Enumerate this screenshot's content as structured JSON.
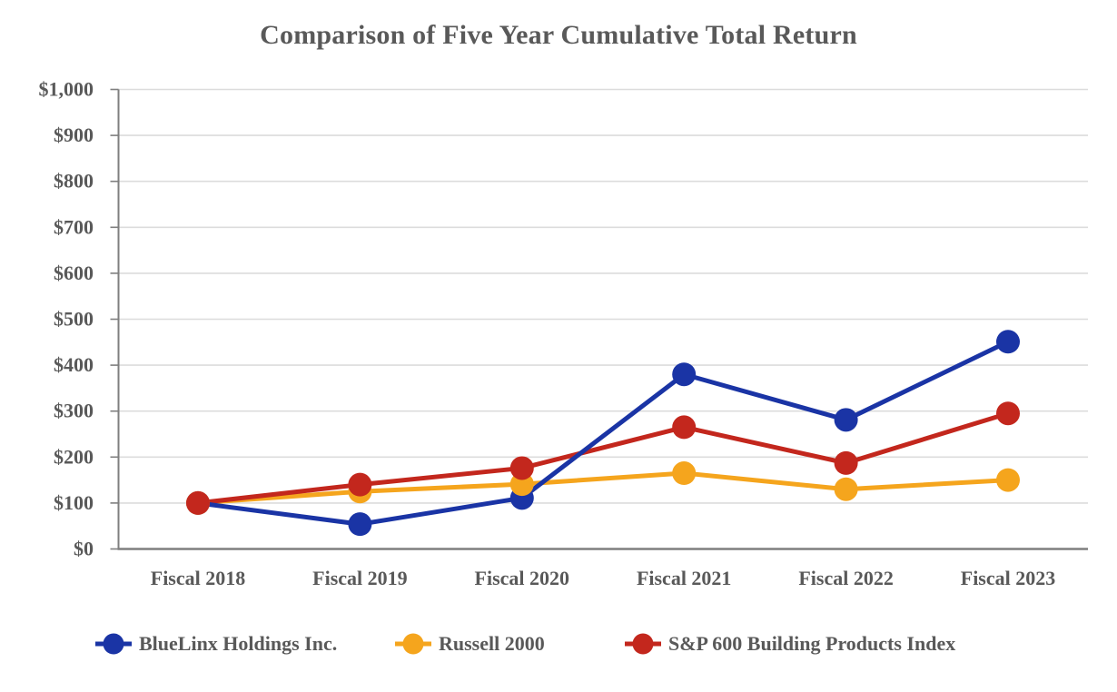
{
  "chart_data": {
    "type": "line",
    "title": "Comparison of Five Year Cumulative Total Return",
    "categories": [
      "Fiscal 2018",
      "Fiscal 2019",
      "Fiscal 2020",
      "Fiscal 2021",
      "Fiscal 2022",
      "Fiscal 2023"
    ],
    "series": [
      {
        "name": "BlueLinx Holdings Inc.",
        "color": "#1A34A5",
        "values": [
          100,
          54,
          111,
          380,
          281,
          451
        ]
      },
      {
        "name": "Russell 2000",
        "color": "#F5A51D",
        "values": [
          100,
          125,
          141,
          165,
          130,
          150
        ]
      },
      {
        "name": "S&P 600 Building Products Index",
        "color": "#C3271D",
        "values": [
          100,
          140,
          176,
          265,
          187,
          295
        ]
      }
    ],
    "xlabel": "",
    "ylabel": "",
    "ylim": [
      0,
      1000
    ],
    "ytick_step": 100,
    "ytick_labels": [
      "$0",
      "$100",
      "$200",
      "$300",
      "$400",
      "$500",
      "$600",
      "$700",
      "$800",
      "$900",
      "$1,000"
    ],
    "grid": "horizontal",
    "legend_position": "bottom",
    "colors": {
      "axis": "#7F7F7F",
      "gridline": "#DCDCDC",
      "label_text": "#595959",
      "background": "#FFFFFF"
    }
  }
}
